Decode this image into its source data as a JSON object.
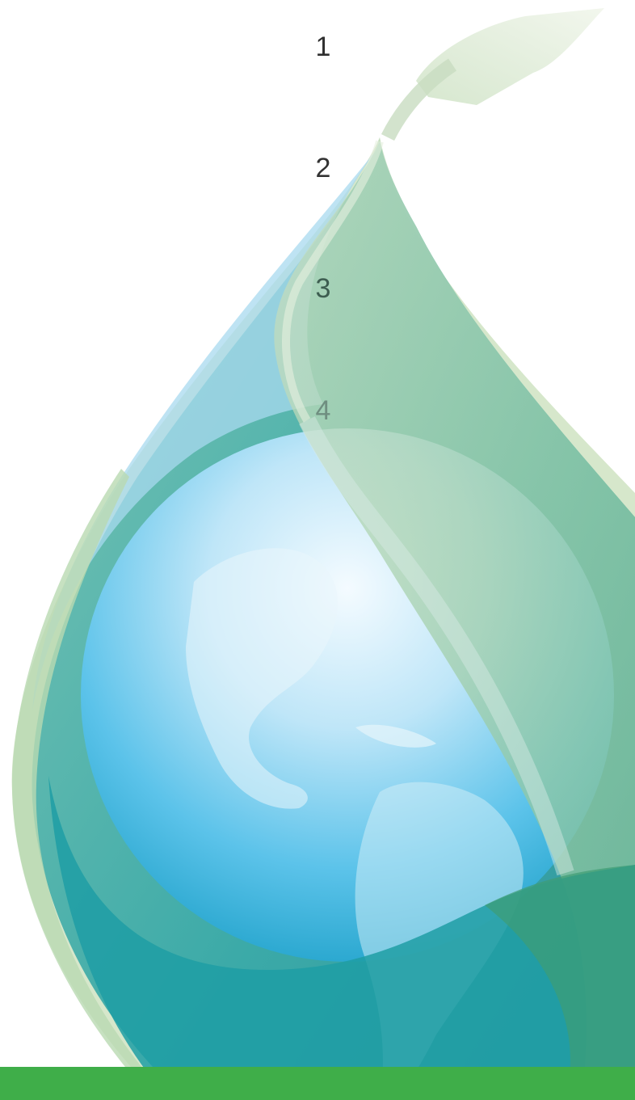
{
  "numbers": {
    "first": "1",
    "second": "2",
    "third": "3",
    "fourth": "4"
  },
  "colors": {
    "number_1": "#2f2f2f",
    "number_2": "#333333",
    "number_3": "#3d5d50",
    "number_4": "#6f8e80",
    "bottom_bar": "#3fae49",
    "drop_blue": "#7fd0f2",
    "drop_teal": "#1fa7a8",
    "leaf_green": "#8cc79f",
    "leaf_light": "#dbe8cf"
  },
  "icons": {
    "illustration": "earth-water-drop-leaf-icon"
  }
}
